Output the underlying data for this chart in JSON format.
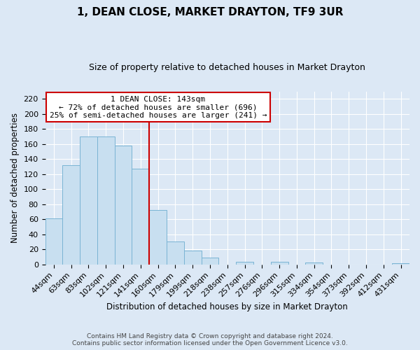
{
  "title": "1, DEAN CLOSE, MARKET DRAYTON, TF9 3UR",
  "subtitle": "Size of property relative to detached houses in Market Drayton",
  "xlabel": "Distribution of detached houses by size in Market Drayton",
  "ylabel": "Number of detached properties",
  "footnote1": "Contains HM Land Registry data © Crown copyright and database right 2024.",
  "footnote2": "Contains public sector information licensed under the Open Government Licence v3.0.",
  "bar_labels": [
    "44sqm",
    "63sqm",
    "83sqm",
    "102sqm",
    "121sqm",
    "141sqm",
    "160sqm",
    "179sqm",
    "199sqm",
    "218sqm",
    "238sqm",
    "257sqm",
    "276sqm",
    "296sqm",
    "315sqm",
    "334sqm",
    "354sqm",
    "373sqm",
    "392sqm",
    "412sqm",
    "431sqm"
  ],
  "bar_values": [
    61,
    132,
    170,
    170,
    158,
    127,
    72,
    31,
    18,
    9,
    0,
    4,
    0,
    4,
    0,
    3,
    0,
    0,
    0,
    0,
    2
  ],
  "bar_color": "#c8dff0",
  "bar_edge_color": "#7ab4d4",
  "vline_x_index": 5,
  "vline_color": "#cc0000",
  "annotation_title": "1 DEAN CLOSE: 143sqm",
  "annotation_line1": "← 72% of detached houses are smaller (696)",
  "annotation_line2": "25% of semi-detached houses are larger (241) →",
  "annotation_box_color": "#ffffff",
  "annotation_box_edge": "#cc0000",
  "ylim": [
    0,
    230
  ],
  "yticks": [
    0,
    20,
    40,
    60,
    80,
    100,
    120,
    140,
    160,
    180,
    200,
    220
  ],
  "bg_color": "#dce8f5",
  "plot_bg_color": "#dce8f5",
  "grid_color": "#ffffff",
  "title_fontsize": 11,
  "subtitle_fontsize": 9,
  "axis_label_fontsize": 8.5,
  "tick_fontsize": 8,
  "annotation_fontsize": 8,
  "footnote_fontsize": 6.5
}
